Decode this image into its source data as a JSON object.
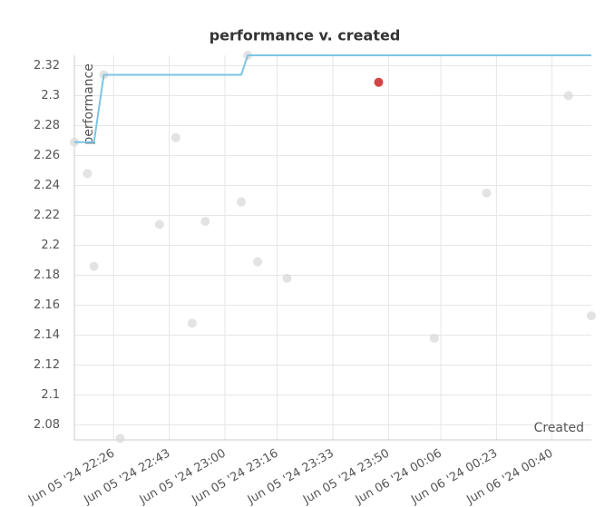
{
  "chart_data": {
    "type": "scatter",
    "title": "performance v. created",
    "x_label": "Created",
    "y_label": "performance",
    "xlim": [
      "2024-06-05T22:14",
      "2024-06-06T00:52"
    ],
    "xticks": [
      {
        "value": "2024-06-05T22:26",
        "label": "Jun 05 '24 22:26"
      },
      {
        "value": "2024-06-05T22:43",
        "label": "Jun 05 '24 22:43"
      },
      {
        "value": "2024-06-05T23:00",
        "label": "Jun 05 '24 23:00"
      },
      {
        "value": "2024-06-05T23:16",
        "label": "Jun 05 '24 23:16"
      },
      {
        "value": "2024-06-05T23:33",
        "label": "Jun 05 '24 23:33"
      },
      {
        "value": "2024-06-05T23:50",
        "label": "Jun 05 '24 23:50"
      },
      {
        "value": "2024-06-06T00:06",
        "label": "Jun 06 '24 00:06"
      },
      {
        "value": "2024-06-06T00:23",
        "label": "Jun 06 '24 00:23"
      },
      {
        "value": "2024-06-06T00:40",
        "label": "Jun 06 '24 00:40"
      }
    ],
    "ylim": [
      2.07,
      2.327
    ],
    "yticks": [
      2.32,
      2.3,
      2.28,
      2.26,
      2.24,
      2.22,
      2.2,
      2.18,
      2.16,
      2.14,
      2.12,
      2.1,
      2.08
    ],
    "grid": true,
    "series": [
      {
        "color": "#d9d9d9",
        "mode": "markers",
        "x": [
          "2024-06-05T22:14",
          "2024-06-05T22:18",
          "2024-06-05T22:20",
          "2024-06-05T22:23",
          "2024-06-05T22:28",
          "2024-06-05T22:40",
          "2024-06-05T22:45",
          "2024-06-05T22:50",
          "2024-06-05T22:54",
          "2024-06-05T23:05",
          "2024-06-05T23:07",
          "2024-06-05T23:10",
          "2024-06-05T23:19",
          "2024-06-06T00:04",
          "2024-06-06T00:20",
          "2024-06-06T00:45",
          "2024-06-06T00:52"
        ],
        "values": [
          2.269,
          2.248,
          2.186,
          2.314,
          2.071,
          2.214,
          2.272,
          2.148,
          2.216,
          2.229,
          2.327,
          2.189,
          2.178,
          2.138,
          2.235,
          2.3,
          2.153
        ]
      },
      {
        "color": "#d24545",
        "mode": "markers",
        "x": [
          "2024-06-05T23:47"
        ],
        "values": [
          2.309
        ]
      },
      {
        "color": "#7cc4e4",
        "mode": "lines",
        "x": [
          "2024-06-05T22:14",
          "2024-06-05T22:18",
          "2024-06-05T22:20",
          "2024-06-05T22:23",
          "2024-06-05T23:05",
          "2024-06-05T23:07",
          "2024-06-06T00:52"
        ],
        "values": [
          2.269,
          2.269,
          2.269,
          2.314,
          2.314,
          2.327,
          2.327
        ]
      }
    ]
  }
}
